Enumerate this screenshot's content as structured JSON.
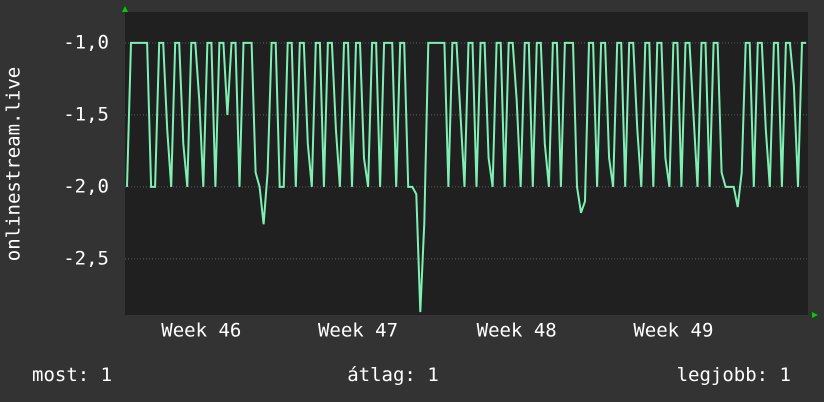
{
  "chart_data": {
    "type": "line",
    "y_label": "onlinestream.live",
    "series": [
      {
        "name": "onlinestream.live",
        "color": "#7ff0b4",
        "values": [
          -2,
          -1,
          -1,
          -1,
          -1,
          -1,
          -2,
          -2,
          -1,
          -1,
          -1.6,
          -2,
          -1,
          -1,
          -1.7,
          -2,
          -1,
          -1,
          -1.4,
          -2,
          -1,
          -1,
          -2,
          -1,
          -1,
          -1.5,
          -1,
          -1,
          -2,
          -1,
          -1,
          -1,
          -1.9,
          -2,
          -2.26,
          -1.9,
          -1,
          -1,
          -2,
          -2,
          -1,
          -1,
          -2,
          -1,
          -1,
          -1.7,
          -2,
          -1,
          -1,
          -2,
          -1,
          -1,
          -1.6,
          -2,
          -1,
          -1,
          -2,
          -1,
          -1,
          -1.8,
          -2,
          -1,
          -1,
          -2,
          -1,
          -1,
          -1,
          -2,
          -1,
          -1,
          -2,
          -2,
          -2.05,
          -2.87,
          -2.25,
          -1,
          -1,
          -1,
          -1,
          -1,
          -2,
          -1,
          -1,
          -1.5,
          -2,
          -1,
          -1,
          -2,
          -1,
          -1,
          -1.8,
          -2,
          -1,
          -1,
          -2,
          -1,
          -1,
          -1.4,
          -2,
          -1,
          -1,
          -2,
          -1,
          -1,
          -1.7,
          -2,
          -1,
          -1,
          -2,
          -1,
          -1,
          -1,
          -2,
          -2.18,
          -2.1,
          -1,
          -1,
          -2,
          -1,
          -1,
          -1.8,
          -2,
          -1,
          -1,
          -2,
          -1,
          -1,
          -1.6,
          -2,
          -1,
          -1,
          -2,
          -1,
          -1,
          -1.8,
          -2,
          -1,
          -1,
          -2,
          -1,
          -1,
          -1.5,
          -2,
          -1,
          -1,
          -2,
          -1,
          -1,
          -1.9,
          -2,
          -2,
          -2,
          -2.14,
          -1.9,
          -1,
          -1,
          -2,
          -1,
          -1,
          -1.6,
          -2,
          -1,
          -1,
          -2,
          -1,
          -1,
          -1.3,
          -2,
          -1,
          -1
        ]
      }
    ],
    "xlim": [
      0,
      170
    ],
    "xticks": [
      {
        "value": 19,
        "label": "Week 46"
      },
      {
        "value": 58,
        "label": "Week 47"
      },
      {
        "value": 97.5,
        "label": "Week 48"
      },
      {
        "value": 136.5,
        "label": "Week 49"
      }
    ],
    "ylim": [
      -2.89,
      -0.785
    ],
    "yticks": [
      {
        "value": -1,
        "label": "-1,0"
      },
      {
        "value": -1.5,
        "label": "-1,5"
      },
      {
        "value": -2,
        "label": "-2,0"
      },
      {
        "value": -2.5,
        "label": "-2,5"
      }
    ],
    "grid": true,
    "stats": [
      {
        "label": "most:",
        "value": 1
      },
      {
        "label": "átlag:",
        "value": 1
      },
      {
        "label": "legjobb:",
        "value": 1
      }
    ]
  }
}
